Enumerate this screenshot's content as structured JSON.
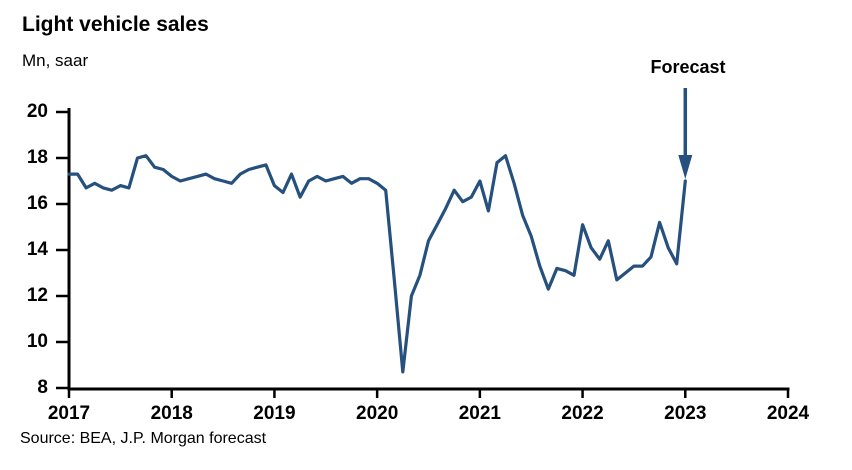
{
  "header": {
    "title": "Light vehicle sales",
    "subtitle": "Mn, saar"
  },
  "annotation": {
    "forecast_label": "Forecast",
    "forecast_arrow": "down-arrow-icon",
    "forecast_x": 2023
  },
  "source": {
    "text": "Source: BEA, J.P. Morgan forecast"
  },
  "colors": {
    "line": "#26507E",
    "axis": "#000000",
    "text": "#000000",
    "background": "#ffffff"
  },
  "chart_data": {
    "type": "line",
    "title": "Light vehicle sales",
    "ylabel": "Mn, saar",
    "xlabel": "",
    "legend_position": "none",
    "grid": false,
    "xlim": [
      2017,
      2024
    ],
    "ylim": [
      8,
      20
    ],
    "y_ticks": [
      8,
      10,
      12,
      14,
      16,
      18,
      20
    ],
    "x_ticks": [
      2017,
      2018,
      2019,
      2020,
      2021,
      2022,
      2023,
      2024
    ],
    "series_name": "Light vehicle sales (Mn, saar)",
    "x_start_year": 2017,
    "x_step_months": 1,
    "values": [
      17.3,
      17.3,
      16.7,
      16.9,
      16.7,
      16.6,
      16.8,
      16.7,
      18.0,
      18.1,
      17.6,
      17.5,
      17.2,
      17.0,
      17.1,
      17.2,
      17.3,
      17.1,
      17.0,
      16.9,
      17.3,
      17.5,
      17.6,
      17.7,
      16.8,
      16.5,
      17.3,
      16.3,
      17.0,
      17.2,
      17.0,
      17.1,
      17.2,
      16.9,
      17.1,
      17.1,
      16.9,
      16.6,
      12.7,
      8.7,
      12.0,
      12.9,
      14.4,
      15.1,
      15.8,
      16.6,
      16.1,
      16.3,
      17.0,
      15.7,
      17.8,
      18.1,
      16.9,
      15.5,
      14.6,
      13.3,
      12.3,
      13.2,
      13.1,
      12.9,
      15.1,
      14.1,
      13.6,
      14.4,
      12.7,
      13.0,
      13.3,
      13.3,
      13.7,
      15.2,
      14.1,
      13.4,
      17.0
    ],
    "forecast_last_n": 1,
    "annotations": [
      {
        "text": "Forecast",
        "x": 2023,
        "arrow": "down"
      }
    ]
  }
}
